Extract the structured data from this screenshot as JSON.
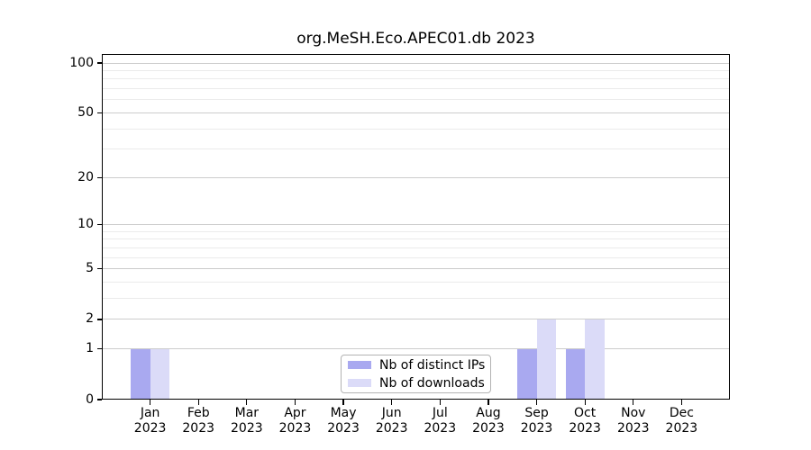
{
  "title": "org.MeSH.Eco.APEC01.db 2023",
  "chart_data": {
    "type": "bar",
    "title": "org.MeSH.Eco.APEC01.db 2023",
    "categories": [
      "Jan",
      "Feb",
      "Mar",
      "Apr",
      "May",
      "Jun",
      "Jul",
      "Aug",
      "Sep",
      "Oct",
      "Nov",
      "Dec"
    ],
    "x_year_label": "2023",
    "series": [
      {
        "name": "Nb of distinct IPs",
        "color": "#a9a9f0",
        "values": [
          1,
          0,
          0,
          0,
          0,
          0,
          0,
          0,
          1,
          1,
          0,
          0
        ]
      },
      {
        "name": "Nb of downloads",
        "color": "#dbdbf8",
        "values": [
          1,
          0,
          0,
          0,
          0,
          0,
          0,
          0,
          2,
          2,
          0,
          0
        ]
      }
    ],
    "yscale": "log1p",
    "ylim": [
      0,
      113
    ],
    "y_axis": {
      "ticks": [
        0,
        1,
        2,
        5,
        10,
        20,
        50,
        100
      ],
      "tick_labels": [
        "0",
        "1",
        "2",
        "5",
        "10",
        "20",
        "50",
        "100"
      ],
      "minor_gridlines": [
        3,
        4,
        6,
        7,
        8,
        9,
        30,
        40,
        60,
        70,
        80,
        90
      ]
    },
    "grid": "horizontal",
    "legend": {
      "position": "lower center"
    }
  },
  "colors": {
    "background": "#ffffff",
    "axis": "#000000",
    "grid_major": "#cccccc",
    "grid_minor": "#ebebeb",
    "legend_border": "#b3b3b3",
    "bar_distinct_ips": "#a9a9f0",
    "bar_downloads": "#dbdbf8"
  }
}
